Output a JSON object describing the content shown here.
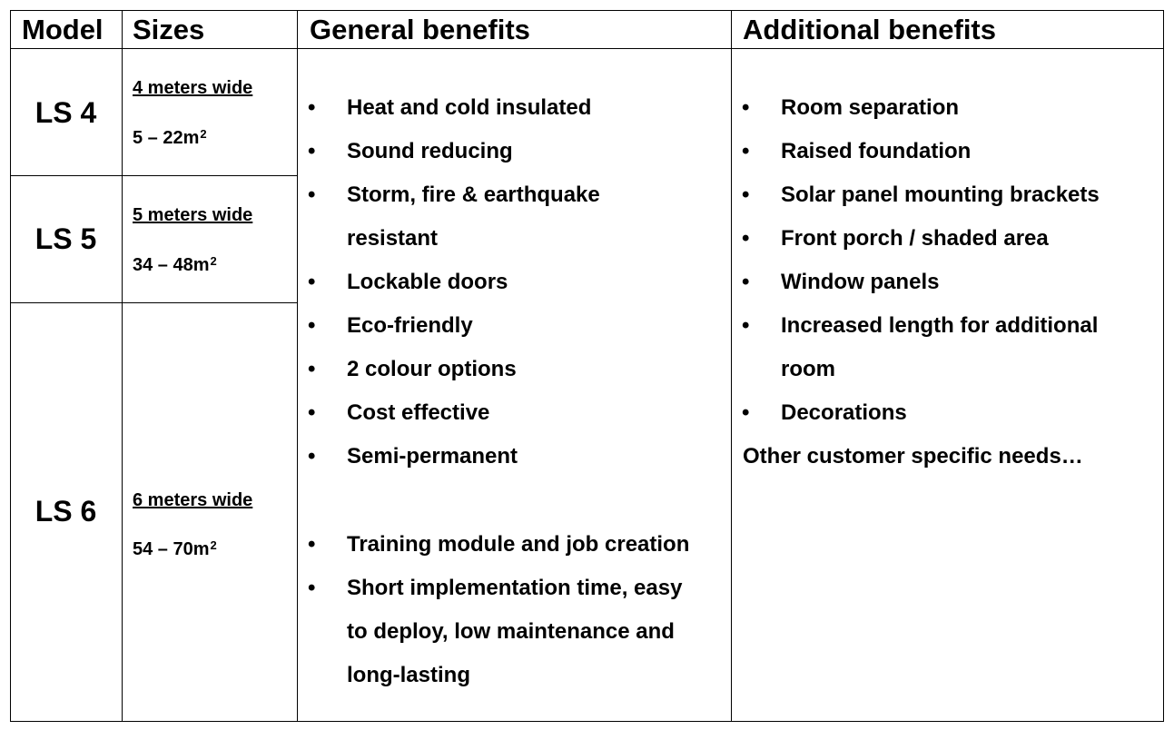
{
  "headers": {
    "model": "Model",
    "sizes": "Sizes",
    "general": "General benefits",
    "additional": "Additional benefits"
  },
  "rows": [
    {
      "model": "LS 4",
      "width_label": "4 meters wide",
      "area": "5 – 22m",
      "unit_exp": "2"
    },
    {
      "model": "LS 5",
      "width_label": "5 meters wide",
      "area": "34 – 48m",
      "unit_exp": "2"
    },
    {
      "model": "LS 6",
      "width_label": "6 meters wide",
      "area": "54 – 70m",
      "unit_exp": "2"
    }
  ],
  "bullet_glyph": "•",
  "general_benefits": [
    [
      "Heat and cold insulated"
    ],
    [
      "Sound reducing"
    ],
    [
      "Storm, fire & earthquake",
      "resistant"
    ],
    [
      "Lockable doors"
    ],
    [
      "Eco-friendly"
    ],
    [
      "2 colour options"
    ],
    [
      "Cost effective"
    ],
    [
      "Semi-permanent"
    ]
  ],
  "general_benefits_extra": [
    [
      "Training module and job creation"
    ],
    [
      "Short implementation time, easy",
      "to deploy, low maintenance and",
      "long-lasting"
    ]
  ],
  "additional_benefits": [
    [
      "Room separation"
    ],
    [
      "Raised foundation"
    ],
    [
      "Solar panel mounting brackets"
    ],
    [
      "Front porch / shaded area"
    ],
    [
      "Window panels"
    ],
    [
      "Increased length for additional",
      "room"
    ],
    [
      "Decorations"
    ]
  ],
  "additional_note": "Other customer specific needs…"
}
